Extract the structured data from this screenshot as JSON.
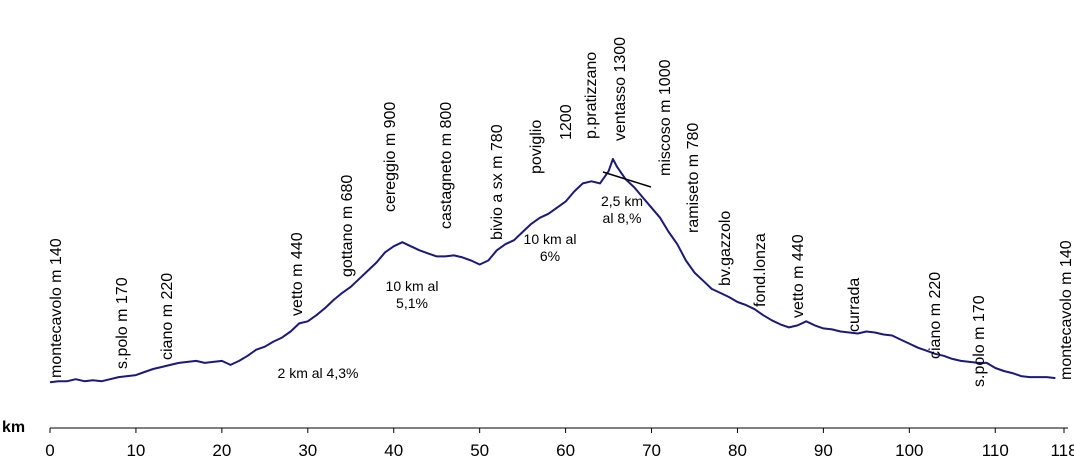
{
  "chart_data": {
    "type": "line",
    "xlabel": "km",
    "xlim": [
      0,
      118
    ],
    "ylim": [
      0,
      1450
    ],
    "x_ticks": [
      0,
      10,
      20,
      30,
      40,
      50,
      60,
      70,
      80,
      90,
      100,
      110,
      118
    ],
    "line_color": "#1a1a7a",
    "grid": false,
    "series": [
      {
        "x": [
          0,
          1,
          2,
          3,
          4,
          5,
          6,
          7,
          8,
          9,
          10,
          11,
          12,
          13,
          14,
          15,
          16,
          17,
          18,
          19,
          20,
          21,
          22,
          23,
          24,
          25,
          26,
          27,
          28,
          29,
          30,
          31,
          32,
          33,
          34,
          35,
          36,
          37,
          38,
          39,
          40,
          41,
          42,
          43,
          44,
          45,
          46,
          47,
          48,
          49,
          50,
          51,
          52,
          53,
          54,
          55,
          56,
          57,
          58,
          59,
          60,
          61,
          62,
          63,
          64,
          65,
          65.5,
          66,
          67,
          68,
          69,
          70,
          71,
          72,
          73,
          74,
          75,
          76,
          77,
          78,
          79,
          80,
          81,
          82,
          83,
          84,
          85,
          86,
          87,
          88,
          89,
          90,
          91,
          92,
          93,
          94,
          95,
          96,
          97,
          98,
          99,
          100,
          101,
          102,
          103,
          104,
          105,
          106,
          107,
          108,
          109,
          110,
          111,
          112,
          113,
          114,
          115,
          116,
          117
        ],
        "y": [
          140,
          145,
          145,
          155,
          145,
          150,
          145,
          155,
          165,
          170,
          175,
          190,
          205,
          215,
          225,
          235,
          240,
          245,
          235,
          240,
          245,
          225,
          245,
          270,
          300,
          315,
          340,
          360,
          390,
          430,
          440,
          470,
          505,
          545,
          580,
          610,
          650,
          690,
          730,
          780,
          810,
          830,
          810,
          790,
          775,
          760,
          760,
          765,
          755,
          740,
          720,
          740,
          790,
          820,
          840,
          880,
          920,
          950,
          970,
          1000,
          1030,
          1080,
          1120,
          1130,
          1120,
          1180,
          1240,
          1200,
          1140,
          1100,
          1050,
          1000,
          950,
          880,
          820,
          740,
          680,
          640,
          600,
          580,
          560,
          535,
          520,
          500,
          470,
          445,
          425,
          410,
          420,
          440,
          420,
          405,
          400,
          390,
          385,
          380,
          390,
          385,
          375,
          370,
          350,
          330,
          310,
          295,
          280,
          270,
          255,
          245,
          240,
          235,
          235,
          210,
          195,
          185,
          170,
          165,
          165,
          165,
          160
        ]
      }
    ],
    "annotations": [
      {
        "x": 0,
        "text": "montecavolo m 140"
      },
      {
        "x": 8,
        "text": "s.polo m 170"
      },
      {
        "x": 13,
        "text": "ciano m 220"
      },
      {
        "x": 28,
        "text": "vetto m 440"
      },
      {
        "x": 34,
        "text": "gottano m 680"
      },
      {
        "x": 38,
        "text": "cereggio m 900"
      },
      {
        "x": 45,
        "text": "castagneto m 800"
      },
      {
        "x": 52,
        "text": "bivio a sx m 780"
      },
      {
        "x": 56,
        "text": "poviglio"
      },
      {
        "x": 60.5,
        "text": "1200"
      },
      {
        "x": 63,
        "text": "p.pratizzano"
      },
      {
        "x": 67,
        "text": "ventasso 1300"
      },
      {
        "x": 71,
        "text": "miscoso m 1000"
      },
      {
        "x": 74,
        "text": "ramiseto m 780"
      },
      {
        "x": 79,
        "text": "bv.gazzolo"
      },
      {
        "x": 82,
        "text": "fond.lonza"
      },
      {
        "x": 87,
        "text": "vetto m 440"
      },
      {
        "x": 93,
        "text": "currada"
      },
      {
        "x": 102,
        "text": "ciano m 220"
      },
      {
        "x": 107,
        "text": "s.polo m 170"
      },
      {
        "x": 117,
        "text": "montecavolo m 140"
      }
    ],
    "gradients": [
      {
        "lines": [
          "2 km al 4,3%"
        ]
      },
      {
        "lines": [
          "10 km al",
          "5,1%"
        ]
      },
      {
        "lines": [
          "10 km al",
          "6%"
        ]
      },
      {
        "lines": [
          "2,5 km",
          "al 8,%"
        ]
      }
    ]
  }
}
